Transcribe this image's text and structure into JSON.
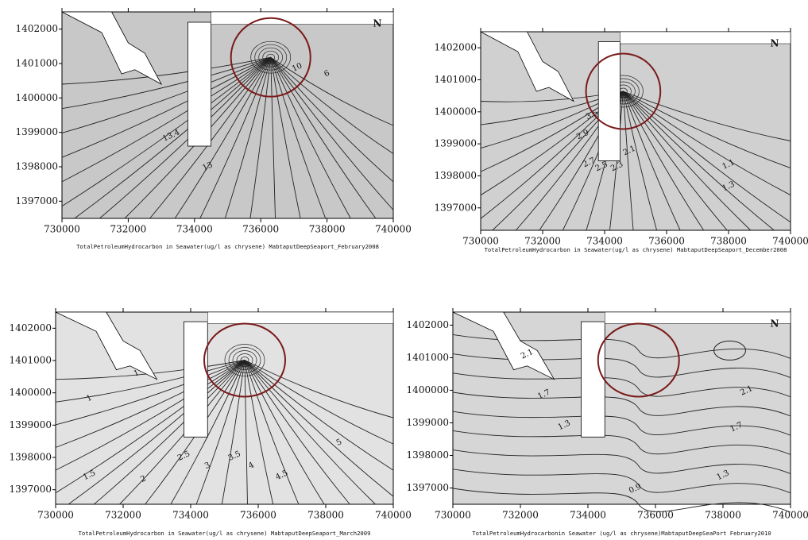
{
  "chart_data": [
    {
      "type": "contour",
      "xlim": [
        730000,
        740000
      ],
      "xticks": [
        730000,
        732000,
        734000,
        736000,
        738000,
        740000
      ],
      "ylim": [
        1396500,
        1402500
      ],
      "yticks": [
        1397000,
        1398000,
        1399000,
        1400000,
        1401000,
        1402000
      ],
      "caption": "TotalPetroleumHydrocarbon in Seawater(ug/l as chrysene) MabtaputDeepSeaport_February2008",
      "north_label": "N",
      "contour_labels": [
        13.4,
        13,
        10,
        6
      ]
    },
    {
      "type": "contour",
      "xlim": [
        730000,
        740000
      ],
      "xticks": [
        730000,
        732000,
        734000,
        736000,
        738000,
        740000
      ],
      "ylim": [
        1396300,
        1402500
      ],
      "yticks": [
        1397000,
        1398000,
        1399000,
        1400000,
        1401000,
        1402000
      ],
      "caption": "TotalPetroleumHydrocarbon in Seawater(ug/l as chrysene) MabtaputDeepSeaport_December2008",
      "north_label": "N",
      "contour_labels": [
        3.5,
        2.9,
        2.7,
        2.5,
        2.3,
        2.1,
        1.1,
        1.3
      ]
    },
    {
      "type": "contour",
      "xlim": [
        730000,
        740000
      ],
      "xticks": [
        730000,
        732000,
        734000,
        736000,
        738000,
        740000
      ],
      "ylim": [
        1396550,
        1402500
      ],
      "yticks": [
        1397000,
        1398000,
        1399000,
        1400000,
        1401000,
        1402000
      ],
      "caption": "TotalPetroleumHydrocarbon in Seawater(ug/l as chrysene) MabtaputDeepSeaport_March2009",
      "contour_labels": [
        1,
        1,
        1.5,
        2,
        2.5,
        3,
        3.5,
        4,
        4.5,
        5
      ]
    },
    {
      "type": "contour",
      "xlim": [
        730000,
        740000
      ],
      "xticks": [
        730000,
        732000,
        734000,
        736000,
        738000,
        740000
      ],
      "ylim": [
        1396500,
        1402400
      ],
      "yticks": [
        1397000,
        1398000,
        1399000,
        1400000,
        1401000,
        1402000
      ],
      "caption": "TotalPetroleumHydrocarbonin Seawater (ug/l as chrysene)MabtaputDeepSeaPort February2010",
      "north_label": "N",
      "contour_labels": [
        2.1,
        2.1,
        1.7,
        1.7,
        1.3,
        1.3,
        0.9
      ]
    }
  ]
}
